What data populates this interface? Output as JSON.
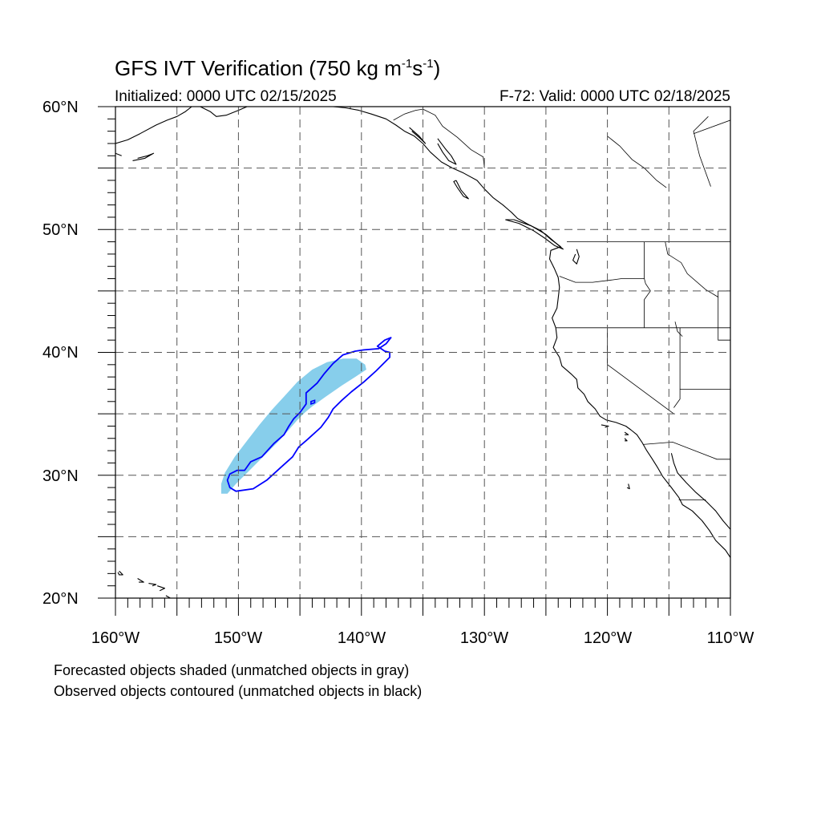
{
  "figure": {
    "title_main": "GFS IVT Verification (750 kg m",
    "title_exp1": "-1",
    "title_mid": "s",
    "title_exp2": "-1",
    "title_end": ")",
    "initialized": "Initialized: 0000 UTC 02/15/2025",
    "valid": "F-72: Valid: 0000 UTC 02/18/2025"
  },
  "axes": {
    "lat_labels": [
      "60°N",
      "50°N",
      "40°N",
      "30°N",
      "20°N"
    ],
    "lon_labels": [
      "160°W",
      "150°W",
      "140°W",
      "130°W",
      "120°W",
      "110°W"
    ],
    "lat_range": [
      20,
      60
    ],
    "lon_range": [
      -160,
      -110
    ],
    "grid": "dashed every 5 degrees"
  },
  "legend": {
    "line1": "Forecasted objects shaded (unmatched objects in gray)",
    "line2": "Observed objects contoured (unmatched objects in black)"
  },
  "colors": {
    "forecast_fill": "#87ceeb",
    "observed_contour": "#0000ff",
    "coastline": "#000000",
    "grid": "#555555"
  },
  "objects": {
    "forecast": {
      "type": "shaded",
      "matched": true,
      "outline": [
        [
          -150.9,
          28.5
        ],
        [
          -150.2,
          29.3
        ],
        [
          -149.2,
          30.3
        ],
        [
          -148.0,
          31.5
        ],
        [
          -146.8,
          32.7
        ],
        [
          -145.9,
          33.7
        ],
        [
          -145.2,
          34.5
        ],
        [
          -144.6,
          35.1
        ],
        [
          -144.0,
          35.6
        ],
        [
          -142.9,
          36.4
        ],
        [
          -141.6,
          37.3
        ],
        [
          -140.5,
          38.0
        ],
        [
          -139.6,
          38.6
        ],
        [
          -139.7,
          39.0
        ],
        [
          -140.4,
          39.5
        ],
        [
          -141.5,
          39.5
        ],
        [
          -142.8,
          39.2
        ],
        [
          -144.0,
          38.6
        ],
        [
          -145.2,
          37.6
        ],
        [
          -146.3,
          36.4
        ],
        [
          -147.3,
          35.3
        ],
        [
          -148.3,
          34.1
        ],
        [
          -149.3,
          32.8
        ],
        [
          -150.3,
          31.5
        ],
        [
          -151.1,
          30.2
        ],
        [
          -151.4,
          29.3
        ],
        [
          -151.4,
          28.5
        ]
      ]
    },
    "observed": {
      "type": "contour",
      "matched": true,
      "outline": [
        [
          -150.2,
          28.7
        ],
        [
          -150.7,
          29.0
        ],
        [
          -150.9,
          29.6
        ],
        [
          -150.7,
          30.1
        ],
        [
          -150.1,
          30.4
        ],
        [
          -149.5,
          30.4
        ],
        [
          -149.0,
          31.1
        ],
        [
          -148.1,
          31.5
        ],
        [
          -147.1,
          32.6
        ],
        [
          -146.3,
          33.3
        ],
        [
          -145.9,
          34.0
        ],
        [
          -145.5,
          34.6
        ],
        [
          -145.0,
          35.1
        ],
        [
          -144.5,
          35.8
        ],
        [
          -144.5,
          36.7
        ],
        [
          -143.6,
          37.5
        ],
        [
          -143.0,
          38.3
        ],
        [
          -142.3,
          39.1
        ],
        [
          -141.5,
          39.8
        ],
        [
          -140.5,
          40.1
        ],
        [
          -139.8,
          40.2
        ],
        [
          -138.6,
          40.3
        ],
        [
          -138.0,
          40.7
        ],
        [
          -137.6,
          41.2
        ],
        [
          -138.1,
          41.0
        ],
        [
          -138.7,
          40.5
        ],
        [
          -138.1,
          40.1
        ],
        [
          -137.7,
          40.0
        ],
        [
          -137.7,
          39.6
        ],
        [
          -138.8,
          38.5
        ],
        [
          -139.8,
          37.6
        ],
        [
          -140.8,
          36.8
        ],
        [
          -141.6,
          36.1
        ],
        [
          -142.3,
          35.4
        ],
        [
          -142.7,
          34.7
        ],
        [
          -143.3,
          33.9
        ],
        [
          -144.4,
          32.9
        ],
        [
          -145.1,
          32.3
        ],
        [
          -145.6,
          31.5
        ],
        [
          -146.6,
          30.6
        ],
        [
          -147.7,
          29.6
        ],
        [
          -148.8,
          28.9
        ],
        [
          -150.2,
          28.7
        ]
      ],
      "island": [
        [
          -144.1,
          36.0
        ],
        [
          -143.8,
          36.1
        ],
        [
          -143.8,
          35.9
        ],
        [
          -144.1,
          35.8
        ]
      ]
    }
  },
  "geography": {
    "coastlines": [
      [
        [
          -160,
          57.0
        ],
        [
          -159.0,
          57.3
        ],
        [
          -158.0,
          57.8
        ],
        [
          -156.7,
          58.5
        ],
        [
          -155.8,
          58.9
        ],
        [
          -155.0,
          59.2
        ],
        [
          -154.3,
          59.6
        ],
        [
          -153.8,
          60
        ]
      ],
      [
        [
          -153.1,
          60
        ],
        [
          -152.3,
          59.6
        ],
        [
          -151.8,
          59.2
        ],
        [
          -151.0,
          59.3
        ],
        [
          -150.0,
          59.7
        ],
        [
          -149.3,
          60
        ]
      ],
      [
        [
          -148.0,
          60
        ],
        [
          -146.5,
          60.1
        ],
        [
          -145.0,
          60.3
        ],
        [
          -143.5,
          60.1
        ],
        [
          -142.3,
          60.0
        ],
        [
          -141.3,
          59.9
        ],
        [
          -140.2,
          59.7
        ],
        [
          -139.2,
          59.4
        ],
        [
          -138.0,
          59.0
        ],
        [
          -137.2,
          58.5
        ],
        [
          -136.5,
          58.0
        ],
        [
          -135.7,
          57.6
        ],
        [
          -135.0,
          57.0
        ],
        [
          -134.4,
          56.3
        ],
        [
          -133.5,
          55.5
        ],
        [
          -132.6,
          55.0
        ],
        [
          -131.7,
          54.6
        ],
        [
          -130.6,
          54.0
        ],
        [
          -130.0,
          53.3
        ],
        [
          -129.3,
          52.6
        ],
        [
          -128.5,
          52.0
        ],
        [
          -127.8,
          51.4
        ],
        [
          -127.3,
          50.9
        ],
        [
          -126.4,
          50.4
        ],
        [
          -125.4,
          49.9
        ],
        [
          -124.6,
          49.2
        ],
        [
          -123.8,
          48.6
        ],
        [
          -124.6,
          48.3
        ],
        [
          -124.7,
          47.6
        ],
        [
          -124.3,
          46.8
        ],
        [
          -124.0,
          46.1
        ],
        [
          -123.9,
          45.3
        ],
        [
          -124.0,
          44.4
        ],
        [
          -124.1,
          43.6
        ],
        [
          -124.5,
          42.8
        ],
        [
          -124.2,
          42.0
        ],
        [
          -124.1,
          41.2
        ],
        [
          -124.4,
          40.4
        ],
        [
          -123.9,
          39.6
        ],
        [
          -123.7,
          38.9
        ],
        [
          -122.9,
          38.2
        ],
        [
          -122.5,
          37.8
        ],
        [
          -122.4,
          37.1
        ],
        [
          -121.9,
          36.6
        ],
        [
          -121.6,
          36.0
        ],
        [
          -121.0,
          35.4
        ],
        [
          -120.6,
          34.8
        ],
        [
          -120.1,
          34.5
        ],
        [
          -119.3,
          34.3
        ],
        [
          -118.5,
          34.0
        ],
        [
          -118.1,
          33.7
        ],
        [
          -117.6,
          33.3
        ],
        [
          -117.2,
          32.7
        ],
        [
          -116.8,
          32.0
        ],
        [
          -116.4,
          31.4
        ],
        [
          -115.9,
          30.6
        ],
        [
          -115.5,
          29.9
        ],
        [
          -114.8,
          29.0
        ],
        [
          -114.2,
          28.2
        ],
        [
          -113.9,
          27.6
        ],
        [
          -113.1,
          27.1
        ],
        [
          -112.3,
          26.3
        ],
        [
          -111.7,
          25.5
        ],
        [
          -111.2,
          24.7
        ],
        [
          -110.4,
          23.9
        ],
        [
          -110.0,
          23.3
        ]
      ],
      [
        [
          -114.8,
          31.8
        ],
        [
          -114.6,
          31.0
        ],
        [
          -114.3,
          30.2
        ],
        [
          -113.6,
          29.4
        ],
        [
          -112.8,
          28.6
        ],
        [
          -112.0,
          27.9
        ],
        [
          -111.2,
          27.1
        ],
        [
          -110.6,
          26.3
        ],
        [
          -110.0,
          25.6
        ]
      ],
      [
        [
          -128.3,
          50.8
        ],
        [
          -127.2,
          50.5
        ],
        [
          -126.0,
          49.9
        ],
        [
          -125.1,
          49.3
        ],
        [
          -124.3,
          48.7
        ],
        [
          -123.6,
          48.4
        ],
        [
          -124.2,
          48.9
        ],
        [
          -125.0,
          49.6
        ],
        [
          -126.2,
          50.3
        ],
        [
          -127.6,
          50.8
        ],
        [
          -128.3,
          50.8
        ]
      ],
      [
        [
          -132.3,
          54.0
        ],
        [
          -131.9,
          53.2
        ],
        [
          -131.3,
          52.5
        ],
        [
          -131.7,
          52.7
        ],
        [
          -132.2,
          53.4
        ],
        [
          -132.5,
          53.9
        ],
        [
          -132.3,
          54.0
        ]
      ],
      [
        [
          -133.8,
          57.4
        ],
        [
          -133.2,
          56.6
        ],
        [
          -132.7,
          56.0
        ],
        [
          -132.3,
          55.3
        ],
        [
          -132.9,
          55.6
        ],
        [
          -133.4,
          56.3
        ],
        [
          -133.8,
          57.0
        ]
      ],
      [
        [
          -136.1,
          58.3
        ],
        [
          -135.3,
          57.6
        ],
        [
          -134.8,
          57.0
        ],
        [
          -135.2,
          57.4
        ],
        [
          -135.9,
          58.0
        ]
      ],
      [
        [
          -122.5,
          48.4
        ],
        [
          -122.3,
          47.8
        ],
        [
          -122.5,
          47.2
        ],
        [
          -122.8,
          47.5
        ],
        [
          -122.6,
          48.0
        ]
      ],
      [
        [
          -158.6,
          55.6
        ],
        [
          -157.6,
          55.8
        ],
        [
          -156.9,
          56.2
        ],
        [
          -157.4,
          56.0
        ],
        [
          -158.2,
          55.8
        ]
      ],
      [
        [
          -159.7,
          22.2
        ],
        [
          -159.4,
          21.9
        ],
        [
          -159.7,
          21.9
        ],
        [
          -159.8,
          22.1
        ]
      ],
      [
        [
          -158.2,
          21.6
        ],
        [
          -157.7,
          21.3
        ],
        [
          -158.1,
          21.3
        ]
      ],
      [
        [
          -157.3,
          21.2
        ],
        [
          -156.7,
          21.1
        ],
        [
          -157.0,
          21.0
        ]
      ],
      [
        [
          -156.6,
          21.0
        ],
        [
          -156.0,
          20.8
        ],
        [
          -156.4,
          20.6
        ]
      ],
      [
        [
          -155.9,
          20.2
        ],
        [
          -155.0,
          19.7
        ],
        [
          -155.4,
          19.2
        ],
        [
          -155.9,
          19.1
        ]
      ],
      [
        [
          -120.5,
          34.1
        ],
        [
          -119.9,
          34.0
        ],
        [
          -120.2,
          33.9
        ]
      ],
      [
        [
          -118.6,
          33.5
        ],
        [
          -118.3,
          33.3
        ],
        [
          -118.6,
          33.3
        ]
      ],
      [
        [
          -118.6,
          33.0
        ],
        [
          -118.4,
          32.8
        ],
        [
          -118.6,
          32.8
        ]
      ],
      [
        [
          -118.3,
          29.3
        ],
        [
          -118.2,
          28.9
        ],
        [
          -118.4,
          29.0
        ]
      ],
      [
        [
          -160,
          56.5
        ],
        [
          -160.0,
          56.2
        ],
        [
          -159.5,
          56.0
        ]
      ]
    ],
    "borders": [
      [
        [
          -137.4,
          58.9
        ],
        [
          -136.5,
          59.4
        ],
        [
          -135.6,
          59.7
        ],
        [
          -135.0,
          59.8
        ]
      ],
      [
        [
          -135.0,
          59.8
        ],
        [
          -134.0,
          59.3
        ],
        [
          -133.4,
          58.4
        ],
        [
          -132.2,
          57.5
        ],
        [
          -131.1,
          56.5
        ],
        [
          -130.1,
          55.9
        ],
        [
          -130.0,
          55.0
        ]
      ],
      [
        [
          -140.9,
          60.3
        ],
        [
          -140.9,
          59.8
        ]
      ],
      [
        [
          -123.3,
          49.0
        ],
        [
          -110,
          49.0
        ]
      ],
      [
        [
          -117.0,
          49.0
        ],
        [
          -117.0,
          46.0
        ],
        [
          -116.9,
          45.6
        ],
        [
          -116.5,
          45.0
        ],
        [
          -117.0,
          44.3
        ],
        [
          -117.0,
          42.0
        ]
      ],
      [
        [
          -123.9,
          46.2
        ],
        [
          -122.6,
          45.7
        ],
        [
          -121.2,
          45.7
        ],
        [
          -119.6,
          45.9
        ],
        [
          -118.9,
          46.0
        ],
        [
          -117.0,
          46.0
        ]
      ],
      [
        [
          -124.2,
          42.0
        ],
        [
          -110,
          42.0
        ]
      ],
      [
        [
          -120.0,
          42.0
        ],
        [
          -120.0,
          39.0
        ],
        [
          -114.6,
          35.0
        ]
      ],
      [
        [
          -114.1,
          42.0
        ],
        [
          -114.1,
          36.2
        ],
        [
          -114.6,
          35.5
        ]
      ],
      [
        [
          -114.1,
          37.0
        ],
        [
          -110,
          37.0
        ]
      ],
      [
        [
          -117.1,
          32.5
        ],
        [
          -114.7,
          32.7
        ],
        [
          -111.1,
          31.3
        ],
        [
          -110,
          31.3
        ]
      ],
      [
        [
          -115.3,
          49.0
        ],
        [
          -115.1,
          48.0
        ],
        [
          -114.0,
          47.3
        ],
        [
          -113.5,
          46.4
        ],
        [
          -112.0,
          45.1
        ],
        [
          -111.0,
          44.5
        ]
      ],
      [
        [
          -111.0,
          45.0
        ],
        [
          -110,
          45.0
        ]
      ],
      [
        [
          -111.0,
          45.0
        ],
        [
          -111.0,
          41.0
        ],
        [
          -110,
          41.0
        ]
      ],
      [
        [
          -114.2,
          28.0
        ],
        [
          -112.0,
          28.0
        ]
      ],
      [
        [
          -120.0,
          57.6
        ],
        [
          -119.0,
          56.8
        ],
        [
          -118.0,
          55.7
        ],
        [
          -117.0,
          55.0
        ],
        [
          -116.0,
          54.0
        ],
        [
          -115.2,
          53.4
        ]
      ],
      [
        [
          -120.0,
          59.4
        ],
        [
          -120.0,
          60.0
        ]
      ],
      [
        [
          -111.6,
          53.5
        ],
        [
          -112.5,
          56.0
        ],
        [
          -113.0,
          58.0
        ],
        [
          -111.8,
          59.2
        ]
      ],
      [
        [
          -113.0,
          57.8
        ],
        [
          -110.0,
          58.9
        ]
      ],
      [
        [
          -114.5,
          42.5
        ],
        [
          -114.3,
          41.7
        ],
        [
          -113.9,
          41.3
        ]
      ]
    ]
  }
}
